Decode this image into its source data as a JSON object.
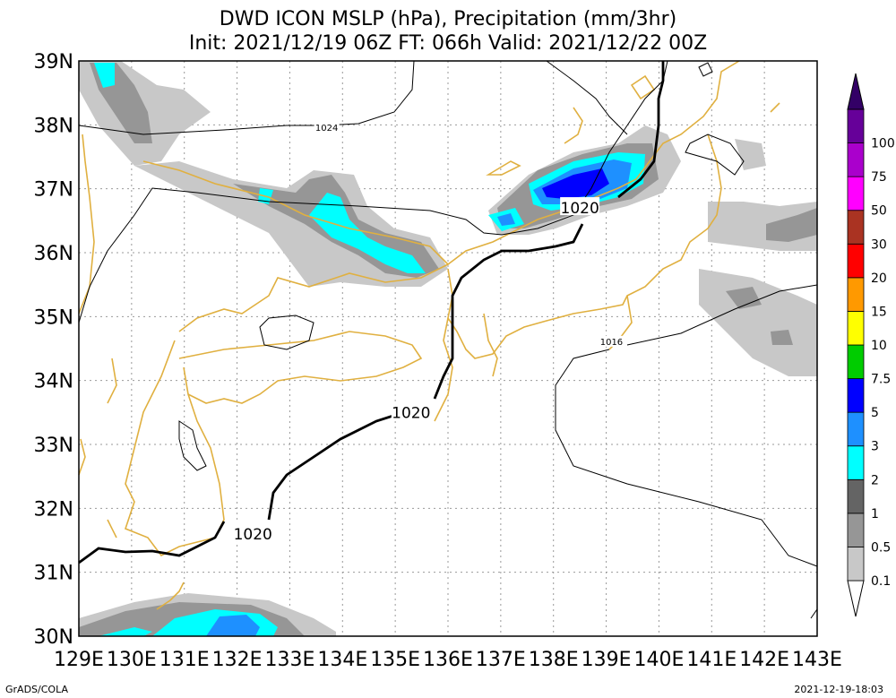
{
  "title": {
    "line1": "DWD ICON MSLP (hPa), Precipitation (mm/3hr)",
    "line2": "Init: 2021/12/19 06Z  FT: 066h  Valid: 2021/12/22 00Z"
  },
  "map": {
    "lon_range": [
      129,
      143
    ],
    "lat_range": [
      30,
      39
    ],
    "lon_labels": [
      "129E",
      "130E",
      "131E",
      "132E",
      "133E",
      "134E",
      "135E",
      "136E",
      "137E",
      "138E",
      "139E",
      "140E",
      "141E",
      "142E",
      "143E"
    ],
    "lat_labels": [
      "30N",
      "31N",
      "32N",
      "33N",
      "34N",
      "35N",
      "36N",
      "37N",
      "38N",
      "39N"
    ],
    "isobar_labels": [
      {
        "text": "1024",
        "lon": 133.7,
        "lat": 37.95
      },
      {
        "text": "1020",
        "lon": 138.5,
        "lat": 36.7
      },
      {
        "text": "1016",
        "lon": 139.1,
        "lat": 34.6
      },
      {
        "text": "1020",
        "lon": 135.3,
        "lat": 33.5
      },
      {
        "text": "1020",
        "lon": 132.3,
        "lat": 31.6
      }
    ],
    "coast_color": "#e0b040"
  },
  "colorbar": {
    "labels": [
      "0.1",
      "0.5",
      "1",
      "2",
      "3",
      "5",
      "7.5",
      "10",
      "15",
      "20",
      "30",
      "50",
      "75",
      "100"
    ],
    "colors": [
      "#c8c8c8",
      "#969696",
      "#646464",
      "#00ffff",
      "#1e90ff",
      "#0000ff",
      "#00cc00",
      "#ffff00",
      "#ff9900",
      "#ff0000",
      "#aa3322",
      "#ff00ff",
      "#aa00cc",
      "#660099",
      "#330066"
    ]
  },
  "footer": {
    "left": "GrADS/COLA",
    "right": "2021-12-19-18:03"
  }
}
